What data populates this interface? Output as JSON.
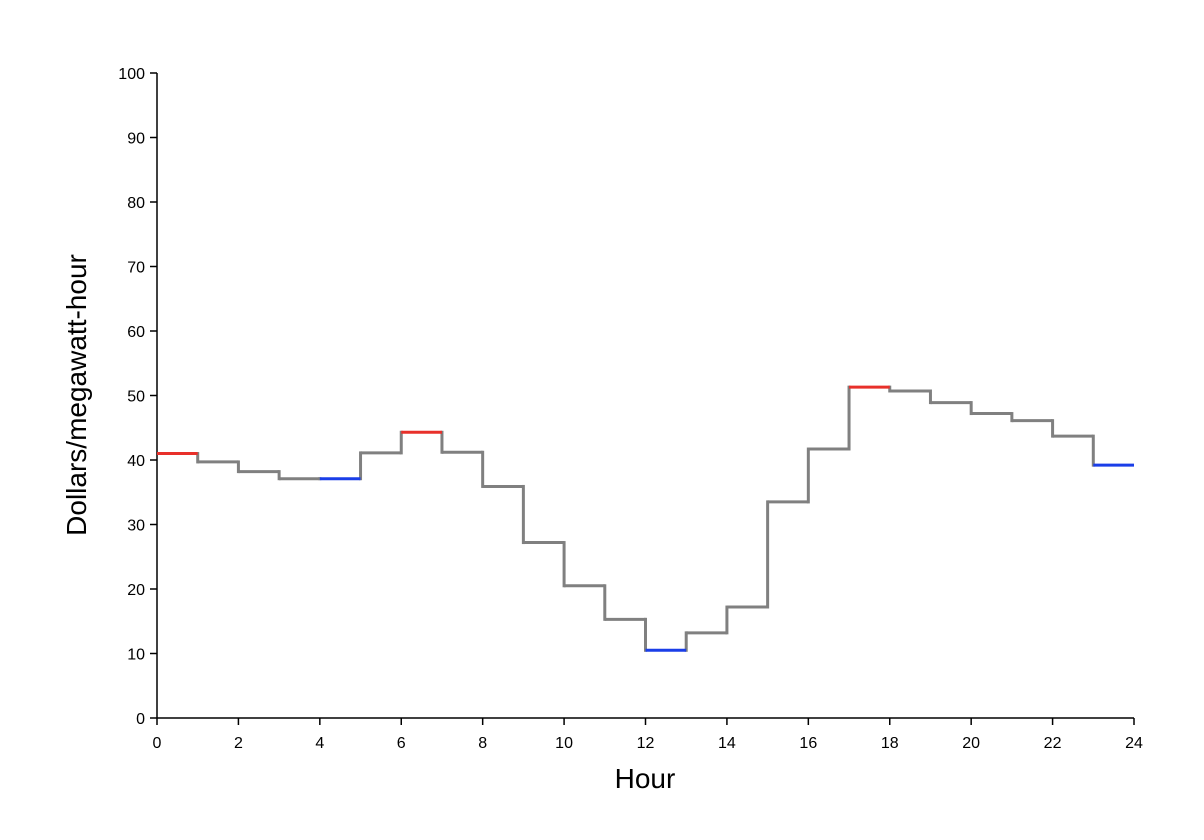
{
  "chart_data": {
    "type": "line",
    "step": "post",
    "title": "",
    "xlabel": "Hour",
    "ylabel": "Dollars/megawatt-hour",
    "xlim": [
      0,
      24
    ],
    "ylim": [
      0,
      100
    ],
    "xticks": [
      0,
      2,
      4,
      6,
      8,
      10,
      12,
      14,
      16,
      18,
      20,
      22,
      24
    ],
    "yticks": [
      0,
      10,
      20,
      30,
      40,
      50,
      60,
      70,
      80,
      90,
      100
    ],
    "grid": false,
    "legend": "none",
    "colors": {
      "normal": "#808080",
      "high": "#e8302a",
      "low": "#1a3ee8"
    },
    "hours": [
      0,
      1,
      2,
      3,
      4,
      5,
      6,
      7,
      8,
      9,
      10,
      11,
      12,
      13,
      14,
      15,
      16,
      17,
      18,
      19,
      20,
      21,
      22,
      23
    ],
    "values": [
      41.0,
      39.7,
      38.2,
      37.1,
      37.1,
      41.1,
      44.3,
      41.2,
      35.9,
      27.2,
      20.5,
      15.3,
      10.5,
      13.2,
      17.2,
      33.5,
      41.7,
      51.3,
      50.7,
      48.9,
      47.2,
      46.1,
      43.7,
      39.2
    ],
    "highlight": [
      "high",
      "normal",
      "normal",
      "normal",
      "low",
      "normal",
      "high",
      "normal",
      "normal",
      "normal",
      "normal",
      "normal",
      "low",
      "normal",
      "normal",
      "normal",
      "normal",
      "high",
      "normal",
      "normal",
      "normal",
      "normal",
      "normal",
      "low"
    ]
  }
}
